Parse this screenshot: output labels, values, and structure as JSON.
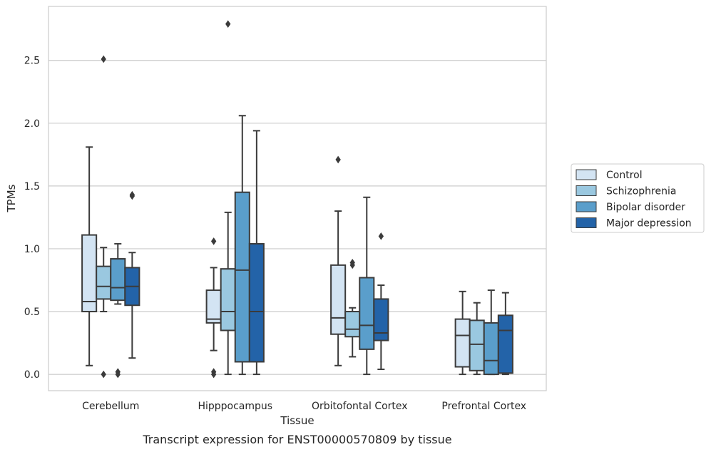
{
  "chart_data": {
    "type": "box",
    "title": "",
    "caption": "Transcript expression for ENST00000570809 by tissue",
    "xlabel": "Tissue",
    "ylabel": "TPMs",
    "ylim": [
      -0.13,
      2.93
    ],
    "yticks": [
      0.0,
      0.5,
      1.0,
      1.5,
      2.0,
      2.5
    ],
    "ytick_labels": [
      "0.0",
      "0.5",
      "1.0",
      "1.5",
      "2.0",
      "2.5"
    ],
    "grid": true,
    "legend_position": "right",
    "categories": [
      "Cerebellum",
      "Hipppocampus",
      "Orbitofontal Cortex",
      "Prefrontal Cortex"
    ],
    "series": [
      {
        "name": "Control",
        "color": "#d3e4f3",
        "boxes": [
          {
            "whislo": 0.07,
            "q1": 0.5,
            "med": 0.58,
            "q3": 1.11,
            "whishi": 1.81,
            "fliers": []
          },
          {
            "whislo": 0.19,
            "q1": 0.41,
            "med": 0.44,
            "q3": 0.67,
            "whishi": 0.85,
            "fliers": [
              1.06,
              0.02,
              0.0
            ]
          },
          {
            "whislo": 0.07,
            "q1": 0.32,
            "med": 0.45,
            "q3": 0.87,
            "whishi": 1.3,
            "fliers": [
              1.71
            ]
          },
          {
            "whislo": 0.0,
            "q1": 0.06,
            "med": 0.31,
            "q3": 0.44,
            "whishi": 0.66,
            "fliers": []
          }
        ]
      },
      {
        "name": "Schizophrenia",
        "color": "#9ac8e0",
        "boxes": [
          {
            "whislo": 0.5,
            "q1": 0.6,
            "med": 0.7,
            "q3": 0.86,
            "whishi": 1.01,
            "fliers": [
              2.51,
              0.0
            ]
          },
          {
            "whislo": 0.0,
            "q1": 0.35,
            "med": 0.5,
            "q3": 0.84,
            "whishi": 1.29,
            "fliers": [
              2.79
            ]
          },
          {
            "whislo": 0.14,
            "q1": 0.3,
            "med": 0.36,
            "q3": 0.5,
            "whishi": 0.53,
            "fliers": [
              0.89,
              0.87
            ]
          },
          {
            "whislo": 0.0,
            "q1": 0.03,
            "med": 0.24,
            "q3": 0.43,
            "whishi": 0.57,
            "fliers": []
          }
        ]
      },
      {
        "name": "Bipolar disorder",
        "color": "#5a9ecb",
        "boxes": [
          {
            "whislo": 0.56,
            "q1": 0.59,
            "med": 0.69,
            "q3": 0.92,
            "whishi": 1.04,
            "fliers": [
              0.02,
              0.0
            ]
          },
          {
            "whislo": 0.0,
            "q1": 0.1,
            "med": 0.83,
            "q3": 1.45,
            "whishi": 2.06,
            "fliers": []
          },
          {
            "whislo": 0.0,
            "q1": 0.2,
            "med": 0.39,
            "q3": 0.77,
            "whishi": 1.41,
            "fliers": []
          },
          {
            "whislo": 0.0,
            "q1": 0.0,
            "med": 0.11,
            "q3": 0.41,
            "whishi": 0.67,
            "fliers": []
          }
        ]
      },
      {
        "name": "Major depression",
        "color": "#2363a8",
        "boxes": [
          {
            "whislo": 0.13,
            "q1": 0.55,
            "med": 0.7,
            "q3": 0.85,
            "whishi": 0.97,
            "fliers": [
              1.43,
              1.42
            ]
          },
          {
            "whislo": 0.0,
            "q1": 0.1,
            "med": 0.5,
            "q3": 1.04,
            "whishi": 1.94,
            "fliers": []
          },
          {
            "whislo": 0.04,
            "q1": 0.27,
            "med": 0.33,
            "q3": 0.6,
            "whishi": 0.71,
            "fliers": [
              1.1
            ]
          },
          {
            "whislo": 0.0,
            "q1": 0.01,
            "med": 0.35,
            "q3": 0.47,
            "whishi": 0.65,
            "fliers": []
          }
        ]
      }
    ]
  }
}
